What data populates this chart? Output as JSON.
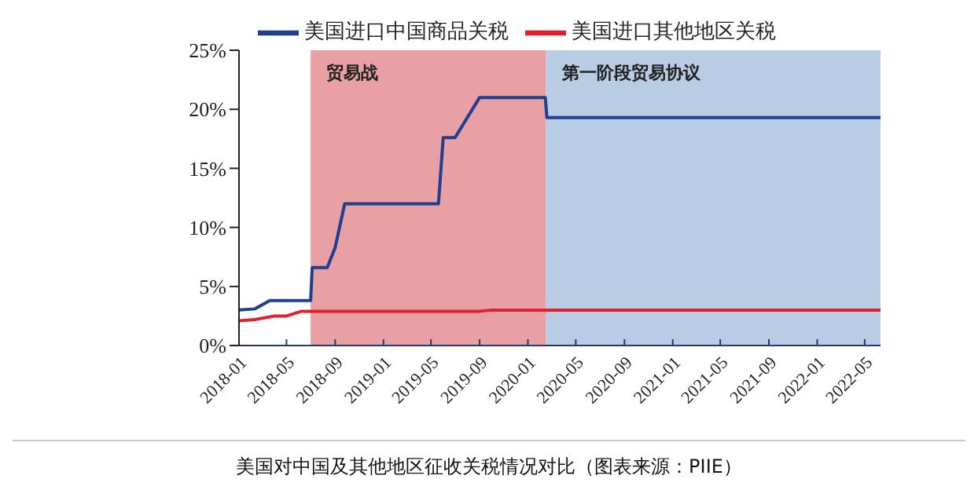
{
  "chart_data": {
    "type": "line",
    "annotations": [
      "美国对中国及其他地区征收关税情况对比（图表来源：PIIE）"
    ],
    "series": [
      {
        "name": "美国进口中国商品关税",
        "color": "#203f8f",
        "x": [
          "2018-01-01",
          "2018-02-10",
          "2018-03-20",
          "2018-07-01",
          "2018-07-05",
          "2018-08-12",
          "2018-09-01",
          "2018-09-25",
          "2019-05-20",
          "2019-06-01",
          "2019-07-01",
          "2019-09-01",
          "2020-02-14",
          "2020-02-18",
          "2022-06-10"
        ],
        "values": [
          3.0,
          3.1,
          3.8,
          3.8,
          6.6,
          6.6,
          8.3,
          12.0,
          12.0,
          17.6,
          17.6,
          21.0,
          21.0,
          19.3,
          19.3
        ]
      },
      {
        "name": "美国进口其他地区关税",
        "color": "#e0202a",
        "x": [
          "2018-01-01",
          "2018-02-10",
          "2018-04-01",
          "2018-05-01",
          "2018-06-08",
          "2019-09-01",
          "2019-10-01",
          "2022-06-10"
        ],
        "values": [
          2.1,
          2.2,
          2.5,
          2.5,
          2.9,
          2.9,
          3.0,
          3.0
        ]
      }
    ],
    "xlim": [
      "2018-01-01",
      "2022-06-10"
    ],
    "xticks": [
      "2018-01",
      "2018-05",
      "2018-09",
      "2019-01",
      "2019-05",
      "2019-09",
      "2020-01",
      "2020-05",
      "2020-09",
      "2021-01",
      "2021-05",
      "2021-09",
      "2022-01",
      "2022-05"
    ],
    "ylim": [
      0,
      25
    ],
    "yticks": [
      {
        "value": 0,
        "label": "0%"
      },
      {
        "value": 5,
        "label": "5%"
      },
      {
        "value": 10,
        "label": "10%"
      },
      {
        "value": 15,
        "label": "15%"
      },
      {
        "value": 20,
        "label": "20%"
      },
      {
        "value": 25,
        "label": "25%"
      }
    ],
    "bands": [
      {
        "axis": "x",
        "from": "2018-07-01",
        "to": "2020-02-16",
        "label": "贸易战",
        "color": "#e8a0a4"
      },
      {
        "axis": "x",
        "from": "2020-02-16",
        "to": "2022-06-10",
        "label": "第一阶段贸易协议",
        "color": "#b8cce4"
      }
    ],
    "legend": "top",
    "grid": false,
    "marker": "none",
    "line_style": "solid"
  }
}
